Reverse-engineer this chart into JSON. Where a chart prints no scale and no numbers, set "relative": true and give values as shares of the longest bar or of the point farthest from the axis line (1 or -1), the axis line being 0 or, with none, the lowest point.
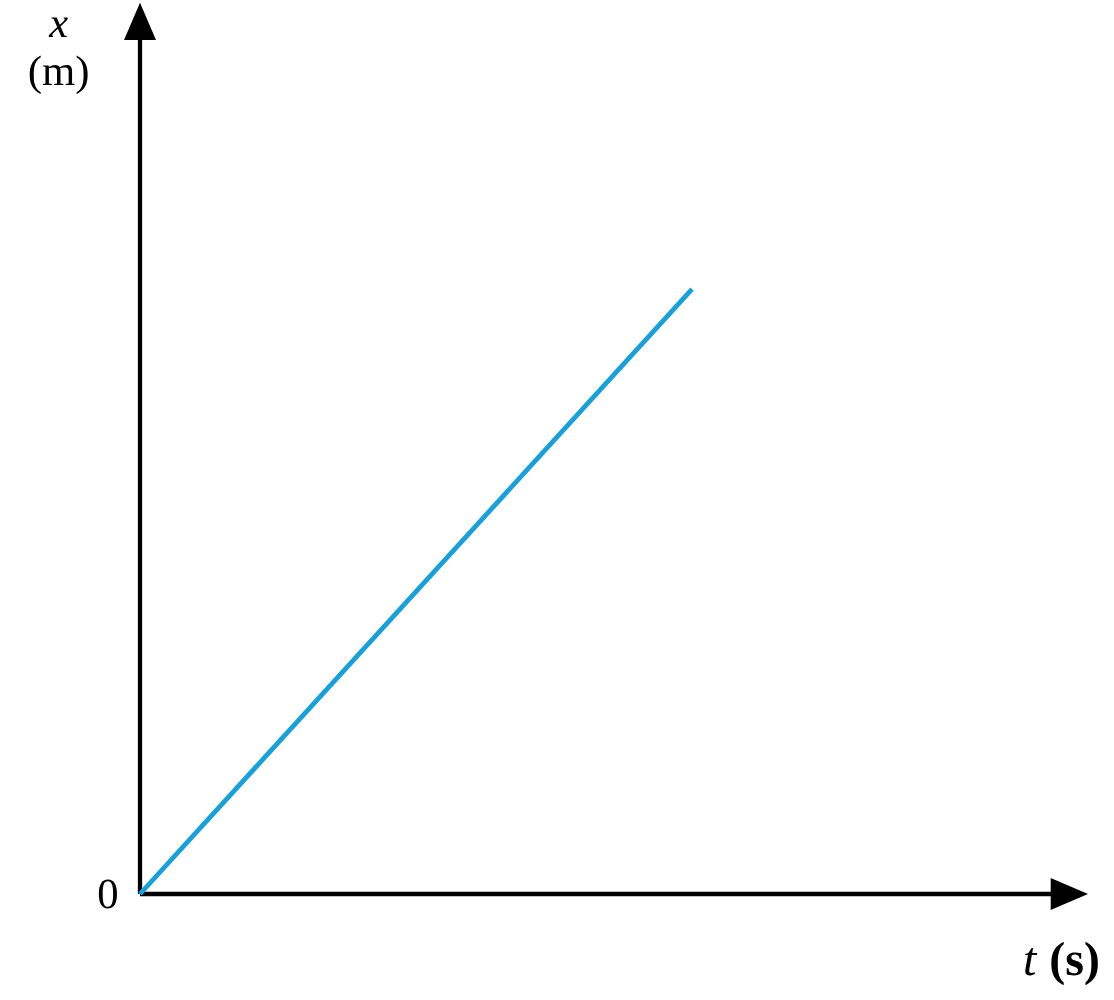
{
  "chart_data": {
    "type": "line",
    "relative": true,
    "xlabel": "*t* **(s)**",
    "ylabel": "*x* (m)",
    "categories": [
      null,
      null
    ],
    "series": [
      {
        "color": "#1a9fd8",
        "values": [
          0,
          1
        ]
      }
    ],
    "annotations": [
      "0"
    ],
    "marker": "none",
    "line_style": "solid"
  }
}
